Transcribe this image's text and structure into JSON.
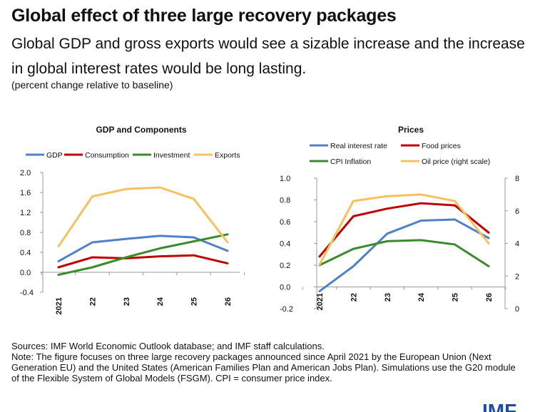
{
  "header": {
    "title": "Global effect of three large recovery packages",
    "subtitle": "Global GDP and gross exports would see a sizable increase and the increase in global interest rates would be long lasting.",
    "unit_note": "(percent change relative to baseline)"
  },
  "colors": {
    "blue": "#4f81c7",
    "red": "#c00000",
    "green": "#3a8a2e",
    "yellow": "#f7c15e",
    "imf_blue": "#1d4e9e"
  },
  "chart_data": [
    {
      "id": "gdp-components",
      "type": "line",
      "title": "GDP and Components",
      "x": [
        "2021",
        "22",
        "23",
        "24",
        "25",
        "26"
      ],
      "xlabel": "",
      "ylabel": "",
      "ylim": [
        -0.4,
        2.0
      ],
      "yticks": [
        -0.4,
        0.0,
        0.4,
        0.8,
        1.2,
        1.6,
        2.0
      ],
      "ytick_labels": [
        "-0.4",
        "0.0",
        "0.4",
        "0.8",
        "1.2",
        "1.6",
        "2.0"
      ],
      "grid": false,
      "legend_position": "top",
      "series": [
        {
          "name": "GDP",
          "color": "#4f81c7",
          "values": [
            0.22,
            0.6,
            0.67,
            0.73,
            0.7,
            0.43
          ]
        },
        {
          "name": "Consumption",
          "color": "#c00000",
          "values": [
            0.1,
            0.3,
            0.28,
            0.32,
            0.34,
            0.18
          ]
        },
        {
          "name": "Investment",
          "color": "#3a8a2e",
          "values": [
            -0.05,
            0.1,
            0.3,
            0.48,
            0.62,
            0.76
          ]
        },
        {
          "name": "Exports",
          "color": "#f7c15e",
          "values": [
            0.52,
            1.52,
            1.67,
            1.7,
            1.47,
            0.6
          ]
        }
      ]
    },
    {
      "id": "prices",
      "type": "line",
      "title": "Prices",
      "x": [
        "2021",
        "22",
        "23",
        "24",
        "25",
        "26"
      ],
      "xlabel": "",
      "ylabel": "",
      "ylim": [
        -0.2,
        1.0
      ],
      "yticks": [
        -0.2,
        0.0,
        0.2,
        0.4,
        0.6,
        0.8,
        1.0
      ],
      "ytick_labels": [
        "-0.2",
        "0.0",
        "0.2",
        "0.4",
        "0.6",
        "0.8",
        "1.0"
      ],
      "y2lim": [
        0,
        8
      ],
      "y2ticks": [
        0,
        2,
        4,
        6,
        8
      ],
      "y2tick_labels": [
        "0",
        "2",
        "4",
        "6",
        "8"
      ],
      "grid": false,
      "legend_position": "top",
      "series": [
        {
          "name": "Real interest rate",
          "color": "#4f81c7",
          "axis": "left",
          "values": [
            -0.04,
            0.19,
            0.49,
            0.61,
            0.62,
            0.45
          ]
        },
        {
          "name": "Food prices",
          "color": "#c00000",
          "axis": "left",
          "values": [
            0.28,
            0.65,
            0.72,
            0.77,
            0.75,
            0.5
          ]
        },
        {
          "name": "CPI Inflation",
          "color": "#3a8a2e",
          "axis": "left",
          "values": [
            0.2,
            0.35,
            0.42,
            0.43,
            0.39,
            0.19
          ]
        },
        {
          "name": "Oil price (right scale)",
          "color": "#f7c15e",
          "axis": "right",
          "values": [
            2.7,
            6.6,
            6.9,
            7.0,
            6.6,
            4.0
          ]
        }
      ]
    }
  ],
  "footer": {
    "sources": "Sources: IMF World Economic Outlook database; and IMF staff calculations.",
    "note": "Note: The figure focuses on three large recovery packages announced since April 2021 by the European Union (Next Generation EU) and the United States (American Families Plan and American Jobs Plan). Simulations use the G20 module of the Flexible System of Global Models (FSGM). CPI = consumer price index."
  },
  "logo": {
    "text": "IMF"
  }
}
